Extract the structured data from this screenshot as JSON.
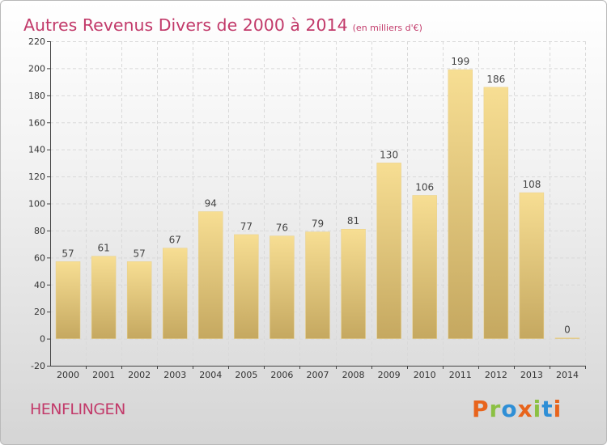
{
  "chart_data": {
    "type": "bar",
    "title": "Autres Revenus Divers de 2000 à 2014",
    "subtitle": "(en milliers d'€)",
    "categories": [
      "2000",
      "2001",
      "2002",
      "2003",
      "2004",
      "2005",
      "2006",
      "2007",
      "2008",
      "2009",
      "2010",
      "2011",
      "2012",
      "2013",
      "2014"
    ],
    "values": [
      57,
      61,
      57,
      67,
      94,
      77,
      76,
      79,
      81,
      130,
      106,
      199,
      186,
      108,
      0
    ],
    "ylim": [
      -20,
      220
    ],
    "yticks": [
      -20,
      0,
      20,
      40,
      60,
      80,
      100,
      120,
      140,
      160,
      180,
      200,
      220
    ],
    "grid": true,
    "bar_color": "#e8cf88"
  },
  "footer": {
    "place_name": "HENFLINGEN",
    "logo_text": "Proxiti",
    "logo_colors": [
      "#e8641c",
      "#8bc043",
      "#2f8fd6",
      "#e8641c",
      "#8bc043",
      "#2f8fd6",
      "#e8641c"
    ]
  }
}
